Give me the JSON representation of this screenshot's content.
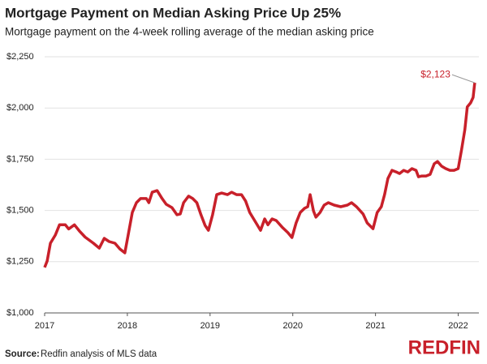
{
  "chart_data": {
    "type": "line",
    "title": "Mortgage Payment on Median Asking Price Up 25%",
    "subtitle": "Mortgage payment on the 4-week rolling average of the median asking price",
    "source_label": "Source:",
    "source_text": "Redfin analysis of MLS data",
    "logo": "REDFIN",
    "x": [
      2017.0,
      2017.03,
      2017.07,
      2017.13,
      2017.18,
      2017.25,
      2017.29,
      2017.36,
      2017.42,
      2017.49,
      2017.59,
      2017.66,
      2017.72,
      2017.78,
      2017.85,
      2017.91,
      2017.97,
      2018.01,
      2018.06,
      2018.11,
      2018.16,
      2018.23,
      2018.26,
      2018.3,
      2018.36,
      2018.42,
      2018.47,
      2018.54,
      2018.6,
      2018.64,
      2018.68,
      2018.74,
      2018.79,
      2018.84,
      2018.89,
      2018.94,
      2018.98,
      2019.03,
      2019.08,
      2019.14,
      2019.21,
      2019.26,
      2019.32,
      2019.38,
      2019.43,
      2019.48,
      2019.55,
      2019.61,
      2019.66,
      2019.7,
      2019.75,
      2019.8,
      2019.87,
      2019.94,
      2019.99,
      2020.04,
      2020.09,
      2020.14,
      2020.18,
      2020.21,
      2020.25,
      2020.28,
      2020.33,
      2020.38,
      2020.43,
      2020.5,
      2020.58,
      2020.66,
      2020.71,
      2020.77,
      2020.85,
      2020.9,
      2020.97,
      2021.02,
      2021.07,
      2021.11,
      2021.15,
      2021.2,
      2021.25,
      2021.29,
      2021.34,
      2021.39,
      2021.44,
      2021.49,
      2021.52,
      2021.56,
      2021.61,
      2021.66,
      2021.71,
      2021.75,
      2021.8,
      2021.85,
      2021.9,
      2021.95,
      2022.0,
      2022.04,
      2022.08,
      2022.11,
      2022.15,
      2022.18,
      2022.2
    ],
    "series": [
      {
        "name": "Mortgage payment",
        "color": "#c8202a",
        "values": [
          1222,
          1253,
          1340,
          1380,
          1430,
          1430,
          1410,
          1430,
          1400,
          1370,
          1340,
          1316,
          1364,
          1348,
          1340,
          1312,
          1293,
          1380,
          1490,
          1538,
          1558,
          1558,
          1538,
          1589,
          1597,
          1558,
          1530,
          1514,
          1479,
          1483,
          1538,
          1570,
          1558,
          1538,
          1479,
          1427,
          1403,
          1479,
          1577,
          1585,
          1577,
          1589,
          1577,
          1577,
          1546,
          1490,
          1443,
          1403,
          1459,
          1430,
          1459,
          1451,
          1419,
          1392,
          1368,
          1439,
          1490,
          1510,
          1518,
          1577,
          1498,
          1467,
          1490,
          1526,
          1538,
          1526,
          1518,
          1526,
          1538,
          1518,
          1483,
          1439,
          1411,
          1490,
          1518,
          1577,
          1656,
          1696,
          1688,
          1680,
          1696,
          1688,
          1704,
          1696,
          1664,
          1668,
          1668,
          1676,
          1728,
          1739,
          1716,
          1704,
          1696,
          1696,
          1704,
          1795,
          1894,
          2005,
          2025,
          2052,
          2123
        ]
      }
    ],
    "annotation": {
      "label": "$2,123",
      "value": 2123
    },
    "xlim": [
      2017,
      2022.25
    ],
    "xticks": [
      2017,
      2018,
      2019,
      2020,
      2021,
      2022
    ],
    "ylim": [
      1000,
      2250
    ],
    "yticks": [
      {
        "value": 1000,
        "label": "$1,000"
      },
      {
        "value": 1250,
        "label": "$1,250"
      },
      {
        "value": 1500,
        "label": "$1,500"
      },
      {
        "value": 1750,
        "label": "$1,750"
      },
      {
        "value": 2000,
        "label": "$2,000"
      },
      {
        "value": 2250,
        "label": "$2,250"
      }
    ],
    "grid": true
  }
}
